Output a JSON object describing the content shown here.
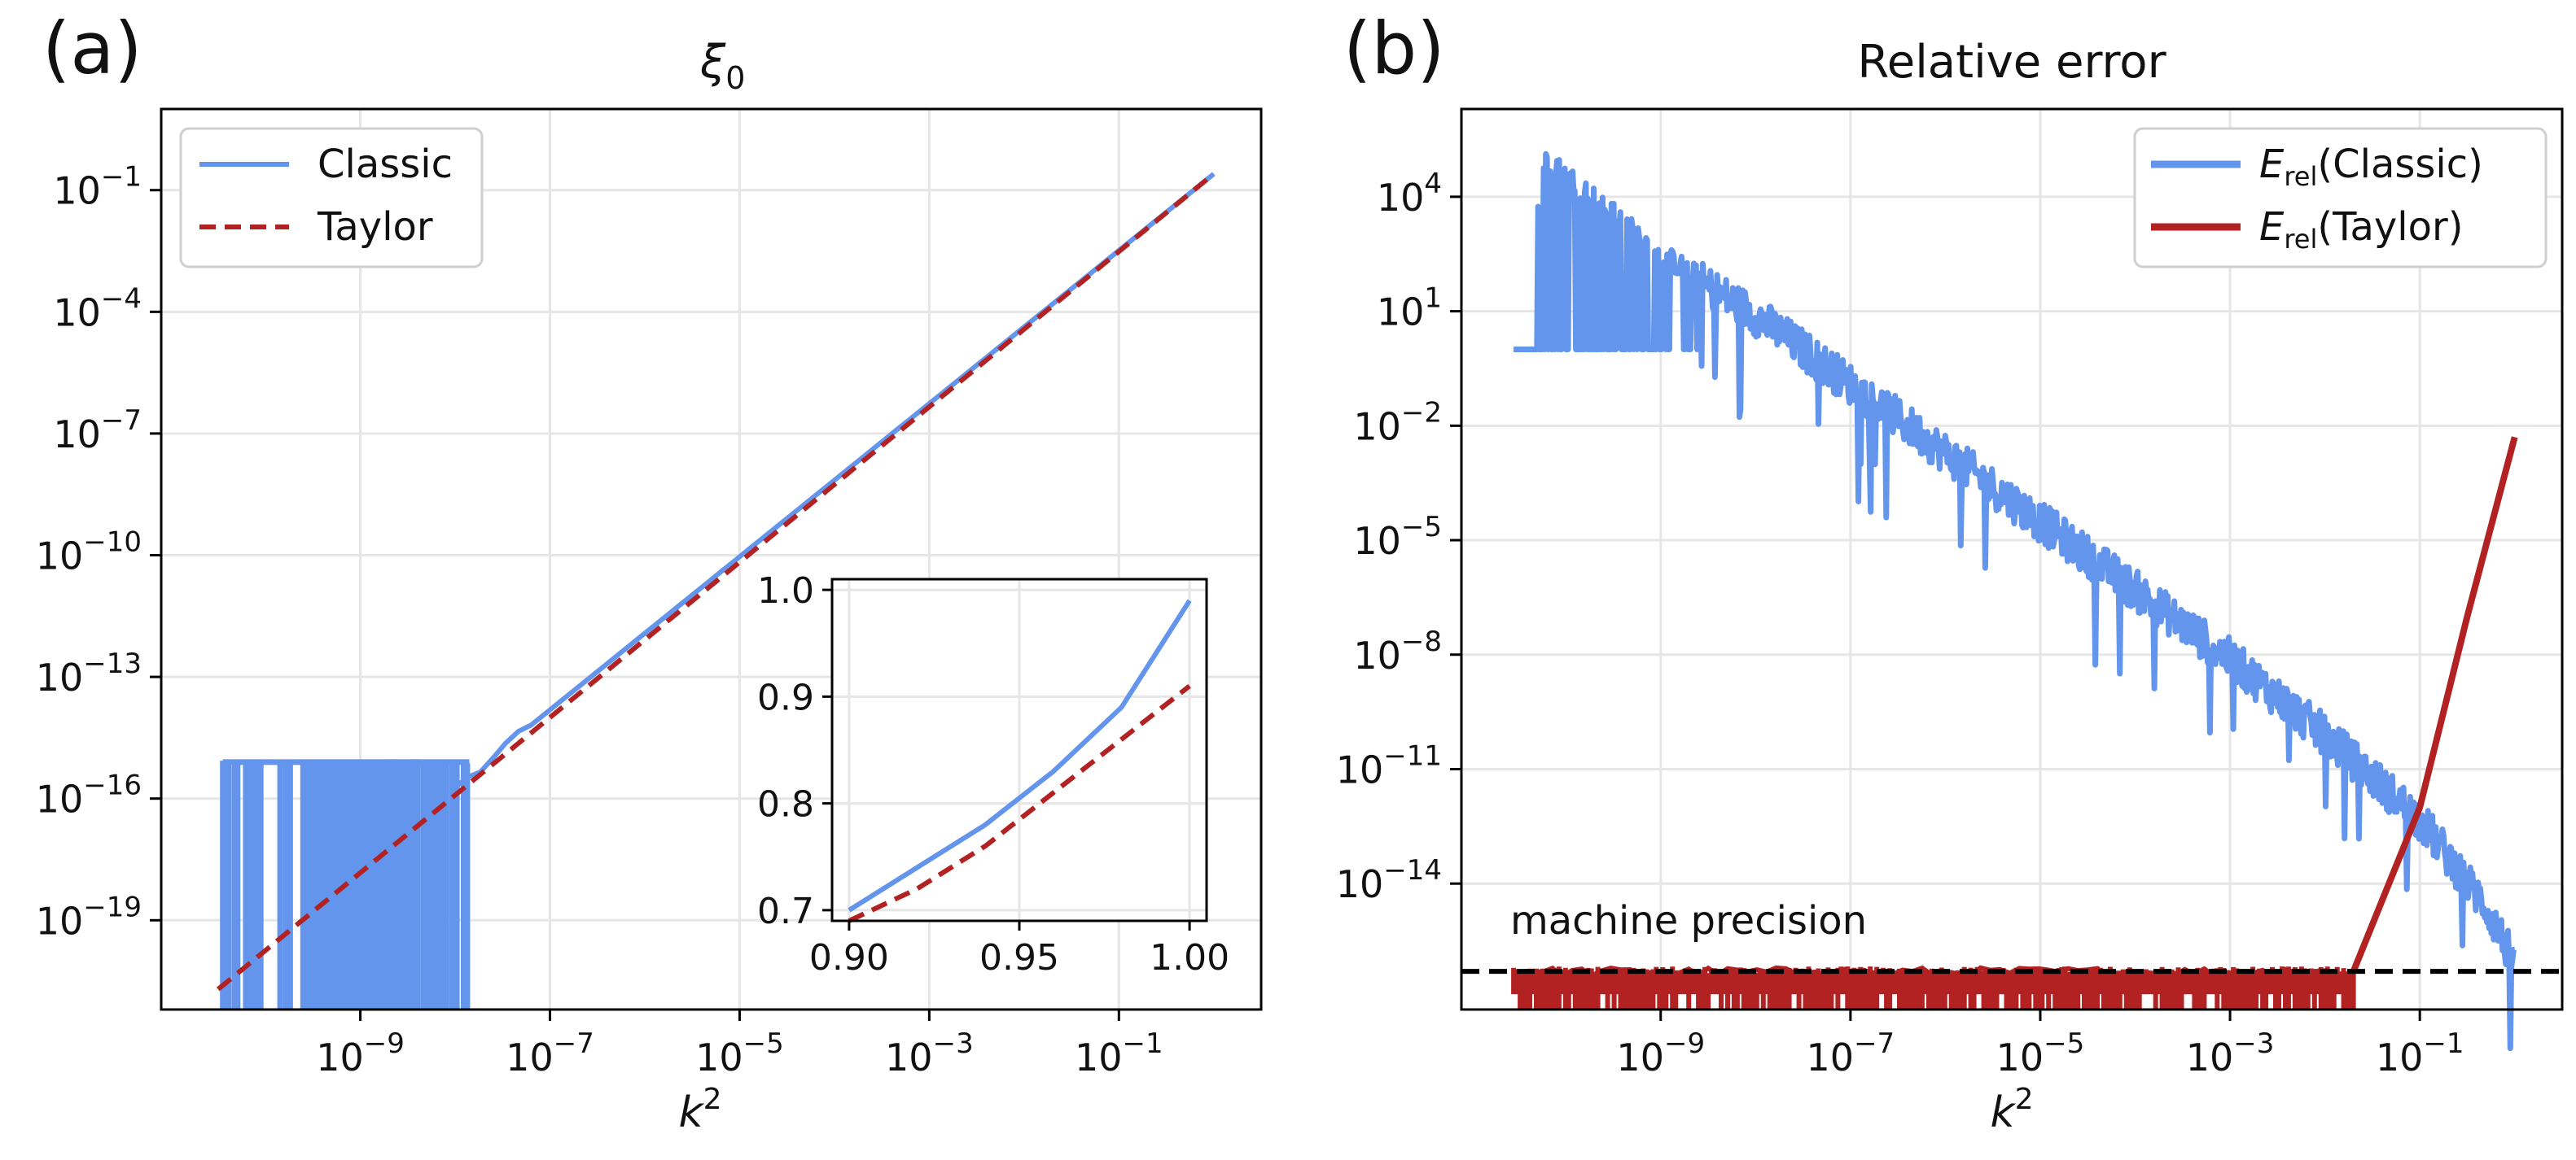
{
  "panels": [
    {
      "label": "(a)",
      "title": "ξ",
      "title_sub": "0"
    },
    {
      "label": "(b)",
      "title": "Relative error"
    }
  ],
  "colors": {
    "classic": "#6495ED",
    "taylor": "#B22222",
    "grid": "#e6e6e6",
    "axis": "#000000",
    "precision_line": "#000000"
  },
  "chart_data": [
    {
      "id": "panel-a",
      "type": "line",
      "scale": "loglog",
      "title": "ξ0",
      "xlabel": "k²",
      "xlabel_base": "k",
      "xlabel_sup": "2",
      "ylabel": "",
      "xlim_exp": [
        -11.1,
        0.5
      ],
      "ylim_exp": [
        -21.2,
        1.0
      ],
      "x_ticks": [
        {
          "base": "10",
          "exp": "−9",
          "v": -9
        },
        {
          "base": "10",
          "exp": "−7",
          "v": -7
        },
        {
          "base": "10",
          "exp": "−5",
          "v": -5
        },
        {
          "base": "10",
          "exp": "−3",
          "v": -3
        },
        {
          "base": "10",
          "exp": "−1",
          "v": -1
        }
      ],
      "y_ticks": [
        {
          "base": "10",
          "exp": "−1",
          "v": -1
        },
        {
          "base": "10",
          "exp": "−4",
          "v": -4
        },
        {
          "base": "10",
          "exp": "−7",
          "v": -7
        },
        {
          "base": "10",
          "exp": "−10",
          "v": -10
        },
        {
          "base": "10",
          "exp": "−13",
          "v": -13
        },
        {
          "base": "10",
          "exp": "−16",
          "v": -16
        },
        {
          "base": "10",
          "exp": "−19",
          "v": -19
        }
      ],
      "legend": {
        "position": "upper left",
        "entries": [
          {
            "name": "Classic",
            "style": "solid"
          },
          {
            "name": "Taylor",
            "style": "dashed"
          }
        ]
      },
      "series": [
        {
          "name": "Classic",
          "description": "linear in log-log, slope 2; noisy near machine precision for k² < 1.4e-8",
          "x_log10": [
            -8.0,
            0.0
          ],
          "y_log10": [
            -15.7,
            -0.6
          ]
        },
        {
          "name": "Taylor",
          "x_log10": [
            -10.5,
            0.0
          ],
          "y_log10": [
            -20.7,
            -0.6
          ]
        }
      ],
      "noise_region": {
        "x_log10": [
          -10.45,
          -7.85
        ],
        "y_upper_log10": -15.1,
        "y_floor": "below axis"
      },
      "inset": {
        "xlim": [
          0.9,
          1.0
        ],
        "ylim": [
          0.69,
          1.01
        ],
        "x_ticks": [
          "0.90",
          "0.95",
          "1.00"
        ],
        "y_ticks": [
          "0.7",
          "0.8",
          "0.9",
          "1.0"
        ],
        "series": [
          {
            "name": "Classic",
            "x": [
              0.9,
              0.92,
              0.94,
              0.96,
              0.98,
              1.0
            ],
            "y": [
              0.7,
              0.74,
              0.78,
              0.83,
              0.89,
              0.99
            ]
          },
          {
            "name": "Taylor",
            "x": [
              0.9,
              0.92,
              0.94,
              0.96,
              0.98,
              1.0
            ],
            "y": [
              0.69,
              0.72,
              0.76,
              0.81,
              0.86,
              0.91
            ]
          }
        ]
      }
    },
    {
      "id": "panel-b",
      "type": "line",
      "scale": "loglog",
      "title": "Relative error",
      "xlabel": "k²",
      "xlabel_base": "k",
      "xlabel_sup": "2",
      "xlim_exp": [
        -11.1,
        0.5
      ],
      "ylim_exp": [
        -17.3,
        6.3
      ],
      "x_ticks": [
        {
          "base": "10",
          "exp": "−9",
          "v": -9
        },
        {
          "base": "10",
          "exp": "−7",
          "v": -7
        },
        {
          "base": "10",
          "exp": "−5",
          "v": -5
        },
        {
          "base": "10",
          "exp": "−3",
          "v": -3
        },
        {
          "base": "10",
          "exp": "−1",
          "v": -1
        }
      ],
      "y_ticks": [
        {
          "base": "10",
          "exp": "4",
          "v": 4
        },
        {
          "base": "10",
          "exp": "1",
          "v": 1
        },
        {
          "base": "10",
          "exp": "−2",
          "v": -2
        },
        {
          "base": "10",
          "exp": "−5",
          "v": -5
        },
        {
          "base": "10",
          "exp": "−8",
          "v": -8
        },
        {
          "base": "10",
          "exp": "−11",
          "v": -11
        },
        {
          "base": "10",
          "exp": "−14",
          "v": -14
        }
      ],
      "legend": {
        "position": "upper right",
        "entries": [
          {
            "name": "E_rel(Classic)",
            "base": "E",
            "sub": "rel",
            "rest": "(Classic)"
          },
          {
            "name": "E_rel(Taylor)",
            "base": "E",
            "sub": "rel",
            "rest": "(Taylor)"
          }
        ]
      },
      "series": [
        {
          "name": "E_rel(Classic)",
          "description": "noisy, decreasing; floor near 1 for small k²",
          "x_log10": [
            -10.55,
            -10.2,
            -9.0,
            -8.0,
            -7.0,
            -6.0,
            -5.0,
            -4.0,
            -3.0,
            -2.0,
            -1.0,
            -0.3,
            0.0
          ],
          "y_log10": [
            0.0,
            5.0,
            2.5,
            1.0,
            -0.8,
            -2.6,
            -4.4,
            -6.2,
            -8.0,
            -10.0,
            -12.2,
            -14.5,
            -16.0
          ]
        },
        {
          "name": "E_rel(Taylor)",
          "description": "below machine precision until k²≈1e-2, then rises",
          "x_log10": [
            -1.7,
            -1.0,
            -0.5,
            0.0
          ],
          "y_log10": [
            -16.3,
            -12.0,
            -7.0,
            -2.3
          ]
        }
      ],
      "hline": {
        "label": "machine precision",
        "y_log10": -16.3,
        "style": "dashed"
      }
    }
  ]
}
